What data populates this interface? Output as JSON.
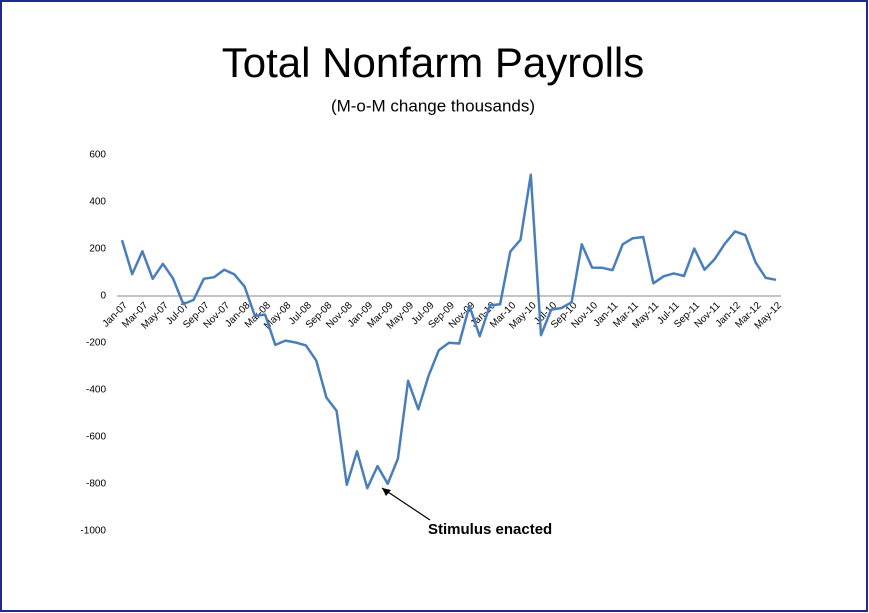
{
  "chart_data": {
    "type": "line",
    "title": "Total Nonfarm Payrolls",
    "subtitle": "(M-o-M change thousands)",
    "annotation": "Stimulus enacted",
    "categories": [
      "Jan-07",
      null,
      "Mar-07",
      null,
      "May-07",
      null,
      "Jul-07",
      null,
      "Sep-07",
      null,
      "Nov-07",
      null,
      "Jan-08",
      null,
      "Mar-08",
      null,
      "May-08",
      null,
      "Jul-08",
      null,
      "Sep-08",
      null,
      "Nov-08",
      null,
      "Jan-09",
      null,
      "Mar-09",
      null,
      "May-09",
      null,
      "Jul-09",
      null,
      "Sep-09",
      null,
      "Nov-09",
      null,
      "Jan-10",
      null,
      "Mar-10",
      null,
      "May-10",
      null,
      "Jul-10",
      null,
      "Sep-10",
      null,
      "Nov-10",
      null,
      "Jan-11",
      null,
      "Mar-11",
      null,
      "May-11",
      null,
      "Jul-11",
      null,
      "Sep-11",
      null,
      "Nov-11",
      null,
      "Jan-12",
      null,
      "Mar-12",
      null,
      "May-12"
    ],
    "series": [
      {
        "name": "Total Nonfarm Payrolls",
        "color": "#4a7ebb",
        "values": [
          238,
          93,
          190,
          73,
          137,
          74,
          -34,
          -17,
          73,
          80,
          112,
          92,
          40,
          -84,
          -79,
          -208,
          -190,
          -198,
          -210,
          -274,
          -432,
          -489,
          -803,
          -661,
          -818,
          -724,
          -799,
          -692,
          -361,
          -482,
          -339,
          -231,
          -199,
          -202,
          -42,
          -171,
          -40,
          -35,
          189,
          239,
          516,
          -167,
          -58,
          -51,
          -27,
          220,
          121,
          120,
          110,
          220,
          246,
          251,
          54,
          84,
          96,
          85,
          202,
          112,
          157,
          223,
          275,
          259,
          143,
          77,
          69
        ]
      }
    ],
    "ylim": [
      -1000,
      600
    ],
    "yticks": [
      -1000,
      -800,
      -600,
      -400,
      -200,
      0,
      200,
      400,
      600
    ],
    "grid": false
  }
}
